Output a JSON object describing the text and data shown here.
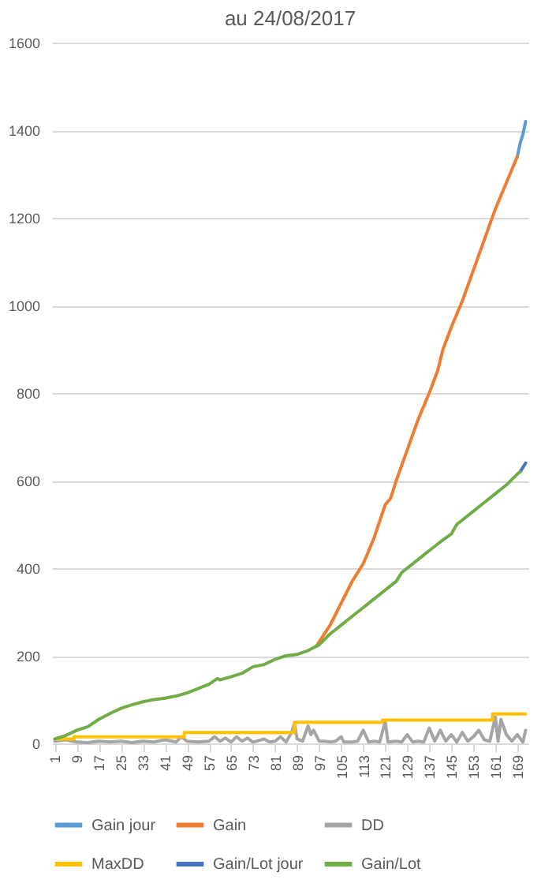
{
  "chart_data": {
    "type": "line",
    "title": "au 24/08/2017",
    "xlim": [
      0,
      173
    ],
    "xticks": [
      1,
      9,
      17,
      25,
      33,
      41,
      49,
      57,
      65,
      73,
      81,
      89,
      97,
      105,
      113,
      121,
      129,
      137,
      145,
      153,
      161,
      169
    ],
    "ylim": [
      0,
      1600
    ],
    "yticks": [
      0,
      200,
      400,
      600,
      800,
      1000,
      1200,
      1400,
      1600
    ],
    "grid": "y",
    "legend": "bottom",
    "series": [
      {
        "name": "Gain jour",
        "color": "#5b9bd5",
        "x": [
          169,
          170,
          171,
          172
        ],
        "values": [
          1340,
          1370,
          1390,
          1420
        ]
      },
      {
        "name": "Gain",
        "color": "#ed7d31",
        "x": [
          96,
          101,
          105,
          109,
          113,
          117,
          121,
          123,
          125,
          129,
          133,
          137,
          140,
          142,
          145,
          149,
          153,
          157,
          161,
          165,
          169
        ],
        "values": [
          222,
          270,
          320,
          370,
          410,
          470,
          545,
          560,
          600,
          670,
          740,
          800,
          850,
          900,
          950,
          1010,
          1080,
          1150,
          1220,
          1280,
          1340
        ]
      },
      {
        "name": "DD",
        "color": "#a5a5a5",
        "x": [
          1,
          5,
          9,
          13,
          17,
          21,
          25,
          29,
          33,
          37,
          41,
          45,
          47,
          49,
          53,
          57,
          59,
          61,
          63,
          65,
          67,
          69,
          71,
          73,
          77,
          79,
          81,
          83,
          85,
          87,
          88,
          89,
          91,
          93,
          94,
          95,
          97,
          99,
          101,
          103,
          105,
          106,
          109,
          111,
          113,
          115,
          117,
          119,
          121,
          122,
          125,
          127,
          129,
          131,
          133,
          135,
          137,
          139,
          141,
          143,
          145,
          147,
          149,
          151,
          153,
          155,
          157,
          159,
          161,
          162,
          163,
          165,
          167,
          169,
          171,
          172
        ],
        "values": [
          5,
          8,
          3,
          2,
          5,
          3,
          5,
          2,
          5,
          3,
          8,
          3,
          15,
          5,
          3,
          5,
          15,
          5,
          12,
          3,
          15,
          5,
          12,
          3,
          10,
          3,
          5,
          15,
          3,
          25,
          45,
          10,
          5,
          40,
          20,
          30,
          5,
          5,
          3,
          5,
          15,
          3,
          3,
          5,
          30,
          3,
          5,
          3,
          50,
          3,
          5,
          3,
          20,
          3,
          5,
          3,
          35,
          5,
          30,
          5,
          20,
          3,
          25,
          5,
          15,
          30,
          8,
          5,
          60,
          5,
          55,
          20,
          5,
          20,
          3,
          30
        ]
      },
      {
        "name": "MaxDD",
        "color": "#ffc000",
        "type": "step",
        "x": [
          1,
          8,
          48,
          88,
          120,
          160,
          172
        ],
        "values": [
          10,
          15,
          25,
          48,
          53,
          67,
          67
        ]
      },
      {
        "name": "Gain/Lot jour",
        "color": "#4472c4",
        "x": [
          170,
          171,
          172
        ],
        "values": [
          620,
          630,
          640
        ]
      },
      {
        "name": "Gain/Lot",
        "color": "#70ad47",
        "x": [
          1,
          5,
          9,
          13,
          17,
          21,
          25,
          29,
          33,
          37,
          41,
          45,
          49,
          53,
          57,
          60,
          61,
          65,
          69,
          73,
          77,
          81,
          85,
          89,
          93,
          97,
          101,
          105,
          109,
          113,
          117,
          121,
          125,
          127,
          129,
          133,
          137,
          141,
          145,
          147,
          149,
          153,
          157,
          161,
          165,
          169,
          170
        ],
        "values": [
          10,
          18,
          30,
          38,
          55,
          68,
          80,
          88,
          95,
          100,
          103,
          108,
          115,
          125,
          135,
          148,
          145,
          152,
          160,
          175,
          180,
          192,
          200,
          203,
          212,
          225,
          250,
          270,
          290,
          310,
          330,
          350,
          370,
          390,
          400,
          420,
          440,
          460,
          478,
          500,
          510,
          530,
          550,
          570,
          590,
          615,
          620
        ]
      }
    ]
  }
}
